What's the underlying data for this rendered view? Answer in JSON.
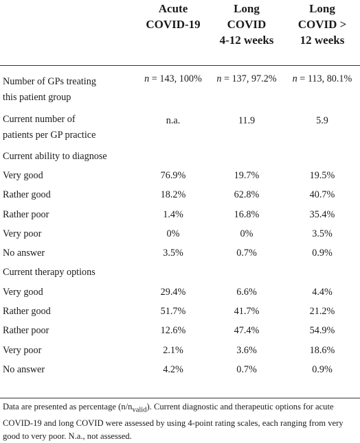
{
  "header": {
    "col1": [
      "Acute",
      "COVID-19"
    ],
    "col2": [
      "Long",
      "COVID",
      "4-12 weeks"
    ],
    "col3": [
      "Long",
      "COVID >",
      "12 weeks"
    ]
  },
  "rows": {
    "gps": {
      "label": [
        "Number of GPs treating",
        "this patient group"
      ],
      "v1": "= 143, 100%",
      "v2": "= 137, 97.2%",
      "v3": "= 113, 80.1%",
      "n_symbol": "n"
    },
    "patients": {
      "label": [
        "Current number of",
        "patients per GP practice"
      ],
      "v1": "n.a.",
      "v2": "11.9",
      "v3": "5.9"
    },
    "diag_header": "Current ability to diagnose",
    "diag": [
      {
        "label": "Very good",
        "v1": "76.9%",
        "v2": "19.7%",
        "v3": "19.5%"
      },
      {
        "label": "Rather good",
        "v1": "18.2%",
        "v2": "62.8%",
        "v3": "40.7%"
      },
      {
        "label": "Rather poor",
        "v1": "1.4%",
        "v2": "16.8%",
        "v3": "35.4%"
      },
      {
        "label": "Very poor",
        "v1": "0%",
        "v2": "0%",
        "v3": "3.5%"
      },
      {
        "label": "No answer",
        "v1": "3.5%",
        "v2": "0.7%",
        "v3": "0.9%"
      }
    ],
    "therapy_header": "Current therapy options",
    "therapy": [
      {
        "label": "Very good",
        "v1": "29.4%",
        "v2": "6.6%",
        "v3": "4.4%"
      },
      {
        "label": "Rather good",
        "v1": "51.7%",
        "v2": "41.7%",
        "v3": "21.2%"
      },
      {
        "label": "Rather poor",
        "v1": "12.6%",
        "v2": "47.4%",
        "v3": "54.9%"
      },
      {
        "label": "Very poor",
        "v1": "2.1%",
        "v2": "3.6%",
        "v3": "18.6%"
      },
      {
        "label": "No answer",
        "v1": "4.2%",
        "v2": "0.7%",
        "v3": "0.9%"
      }
    ]
  },
  "footnote": {
    "part1": "Data are presented as percentage (n/n",
    "sub": "valid",
    "part2": "). Current diagnostic and therapeutic options for acute COVID-19 and long COVID were assessed by using 4-point rating scales, each ranging from very good to very poor. N.a., not assessed."
  }
}
